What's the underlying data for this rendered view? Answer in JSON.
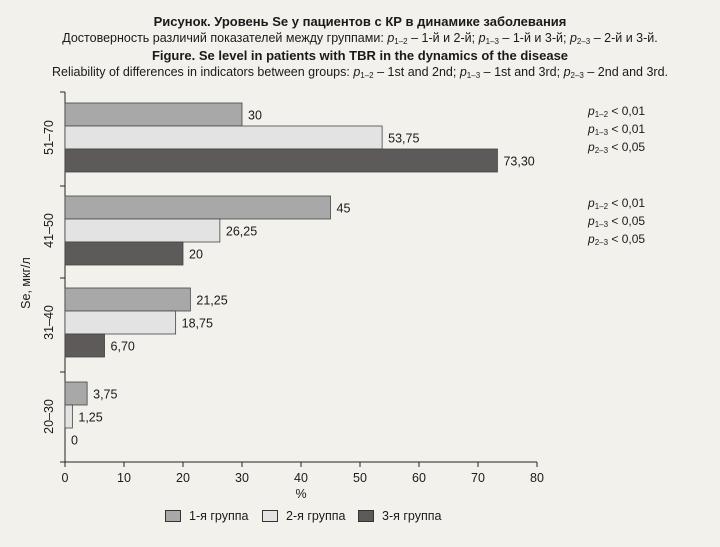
{
  "subtitle_ru": {
    "prefix": "Достоверность различий показателей между группами:",
    "p12": "– 1-й и 2-й;",
    "p13": "– 1-й и 3-й;",
    "p23": "– 2-й и 3-й."
  },
  "subtitle_en": {
    "prefix": "Reliability of differences in indicators between groups:",
    "p12": "– 1st and 2nd;",
    "p13": "– 1st and 3rd;",
    "p23": "– 2nd and 3rd."
  },
  "pvalues": [
    {
      "category": "51–70",
      "p12": "< 0,01",
      "p13": "< 0,01",
      "p23": "< 0,05"
    },
    {
      "category": "41–50",
      "p12": "< 0,01",
      "p13": "< 0,05",
      "p23": "< 0,05"
    }
  ],
  "chart_data": {
    "type": "bar",
    "orientation": "horizontal",
    "title": "Рисунок. Уровень Se у пациентов с КР в динамике заболевания",
    "title_en": "Figure. Se level in patients with TBR in the dynamics of the disease",
    "xlabel": "%",
    "ylabel": "Se, мкг/л",
    "xlim": [
      0,
      80
    ],
    "xticks": [
      0,
      10,
      20,
      30,
      40,
      50,
      60,
      70,
      80
    ],
    "categories": [
      "51–70",
      "41–50",
      "31–40",
      "20–30"
    ],
    "series": [
      {
        "name": "1-я группа",
        "color": "#a8a8a8",
        "values": [
          30,
          45,
          21.25,
          3.75
        ],
        "labels": [
          "30",
          "45",
          "21,25",
          "3,75"
        ]
      },
      {
        "name": "2-я группа",
        "color": "#e3e3e3",
        "values": [
          53.75,
          26.25,
          18.75,
          1.25
        ],
        "labels": [
          "53,75",
          "26,25",
          "18,75",
          "1,25"
        ]
      },
      {
        "name": "3-я группа",
        "color": "#5f5a5a",
        "values": [
          73.3,
          20,
          6.7,
          0
        ],
        "labels": [
          "73,30",
          "20",
          "6,70",
          "0"
        ]
      }
    ],
    "grid": false,
    "legend": "bottom"
  }
}
